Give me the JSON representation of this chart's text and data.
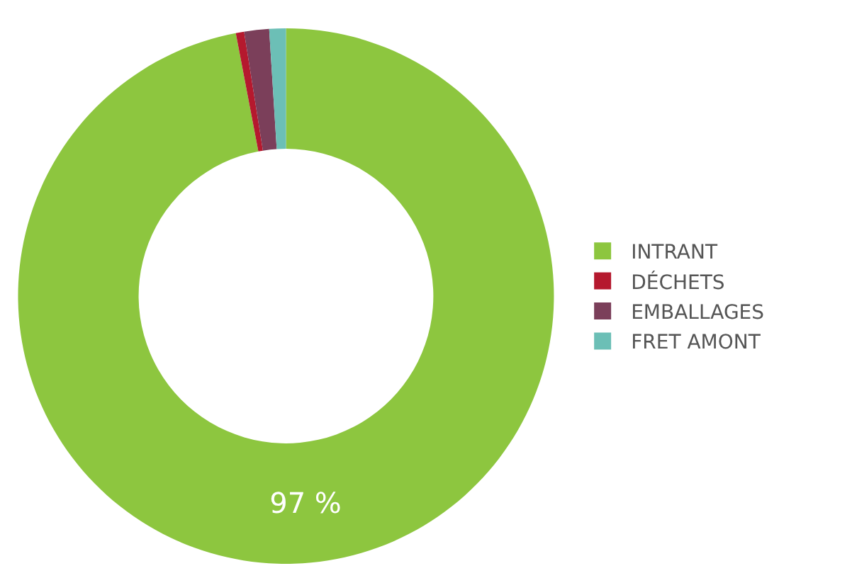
{
  "chart_data": {
    "type": "donut",
    "categories": [
      "INTRANT",
      "DÉCHETS",
      "EMBALLAGES",
      "FRET AMONT"
    ],
    "values": [
      97,
      0.5,
      1.5,
      1
    ],
    "colors": [
      "#8dc63f",
      "#b5192e",
      "#7b3f5a",
      "#6cbfb6"
    ],
    "value_labels": [
      "97 %",
      null,
      null,
      null
    ],
    "legend": "right"
  }
}
